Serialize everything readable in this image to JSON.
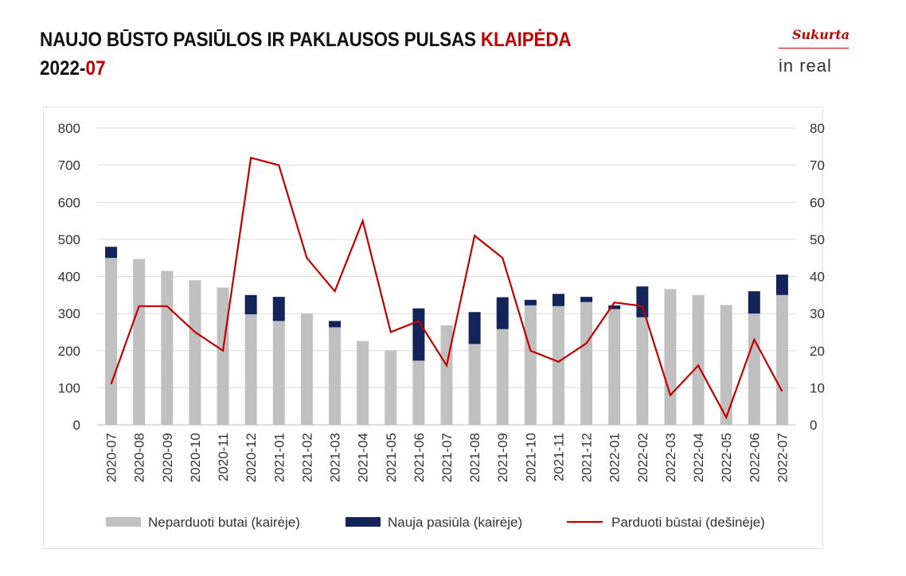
{
  "header": {
    "title_main": "NAUJO BŪSTO PASIŪLOS IR PAKLAUSOS PULSAS ",
    "title_city": "KLAIPĖDA",
    "date_year": "2022-",
    "date_month": "07"
  },
  "logo": {
    "top_text": "Sukurta",
    "bottom_text": "in real"
  },
  "colors": {
    "unsold": "#c0c0c0",
    "new_supply": "#14245a",
    "sold": "#c00000",
    "accent": "#c00000"
  },
  "chart_data": {
    "type": "bar",
    "categories": [
      "2020-07",
      "2020-08",
      "2020-09",
      "2020-10",
      "2020-11",
      "2020-12",
      "2021-01",
      "2021-02",
      "2021-03",
      "2021-04",
      "2021-05",
      "2021-06",
      "2021-07",
      "2021-08",
      "2021-09",
      "2021-10",
      "2021-11",
      "2021-12",
      "2022-01",
      "2022-02",
      "2022-03",
      "2022-04",
      "2022-05",
      "2022-06",
      "2022-07"
    ],
    "series": [
      {
        "name": "Neparduoti butai (kairėje)",
        "kind": "bar",
        "axis": "left",
        "values": [
          450,
          447,
          415,
          390,
          370,
          298,
          280,
          300,
          263,
          226,
          201,
          173,
          268,
          218,
          258,
          322,
          320,
          331,
          312,
          290,
          366,
          350,
          323,
          300,
          350
        ]
      },
      {
        "name": "Nauja pasiūla (kairėje)",
        "kind": "bar-stacked",
        "axis": "left",
        "values": [
          30,
          0,
          0,
          0,
          0,
          52,
          65,
          0,
          17,
          0,
          0,
          141,
          0,
          86,
          86,
          15,
          33,
          14,
          10,
          83,
          0,
          0,
          0,
          60,
          55
        ]
      },
      {
        "name": "Parduoti būstai (dešinėje)",
        "kind": "line",
        "axis": "right",
        "values": [
          11,
          32,
          32,
          25,
          20,
          72,
          70,
          45,
          36,
          55,
          25,
          28,
          16,
          51,
          45,
          20,
          17,
          22,
          33,
          32,
          8,
          16,
          2,
          23,
          9
        ]
      }
    ],
    "y_left": {
      "min": 0,
      "max": 800,
      "ticks": [
        "0",
        "100",
        "200",
        "300",
        "400",
        "500",
        "600",
        "700",
        "800"
      ]
    },
    "y_right": {
      "min": 0,
      "max": 80,
      "ticks": [
        "0",
        "10",
        "20",
        "30",
        "40",
        "50",
        "60",
        "70",
        "80"
      ]
    },
    "grid": true,
    "legend_position": "bottom"
  }
}
